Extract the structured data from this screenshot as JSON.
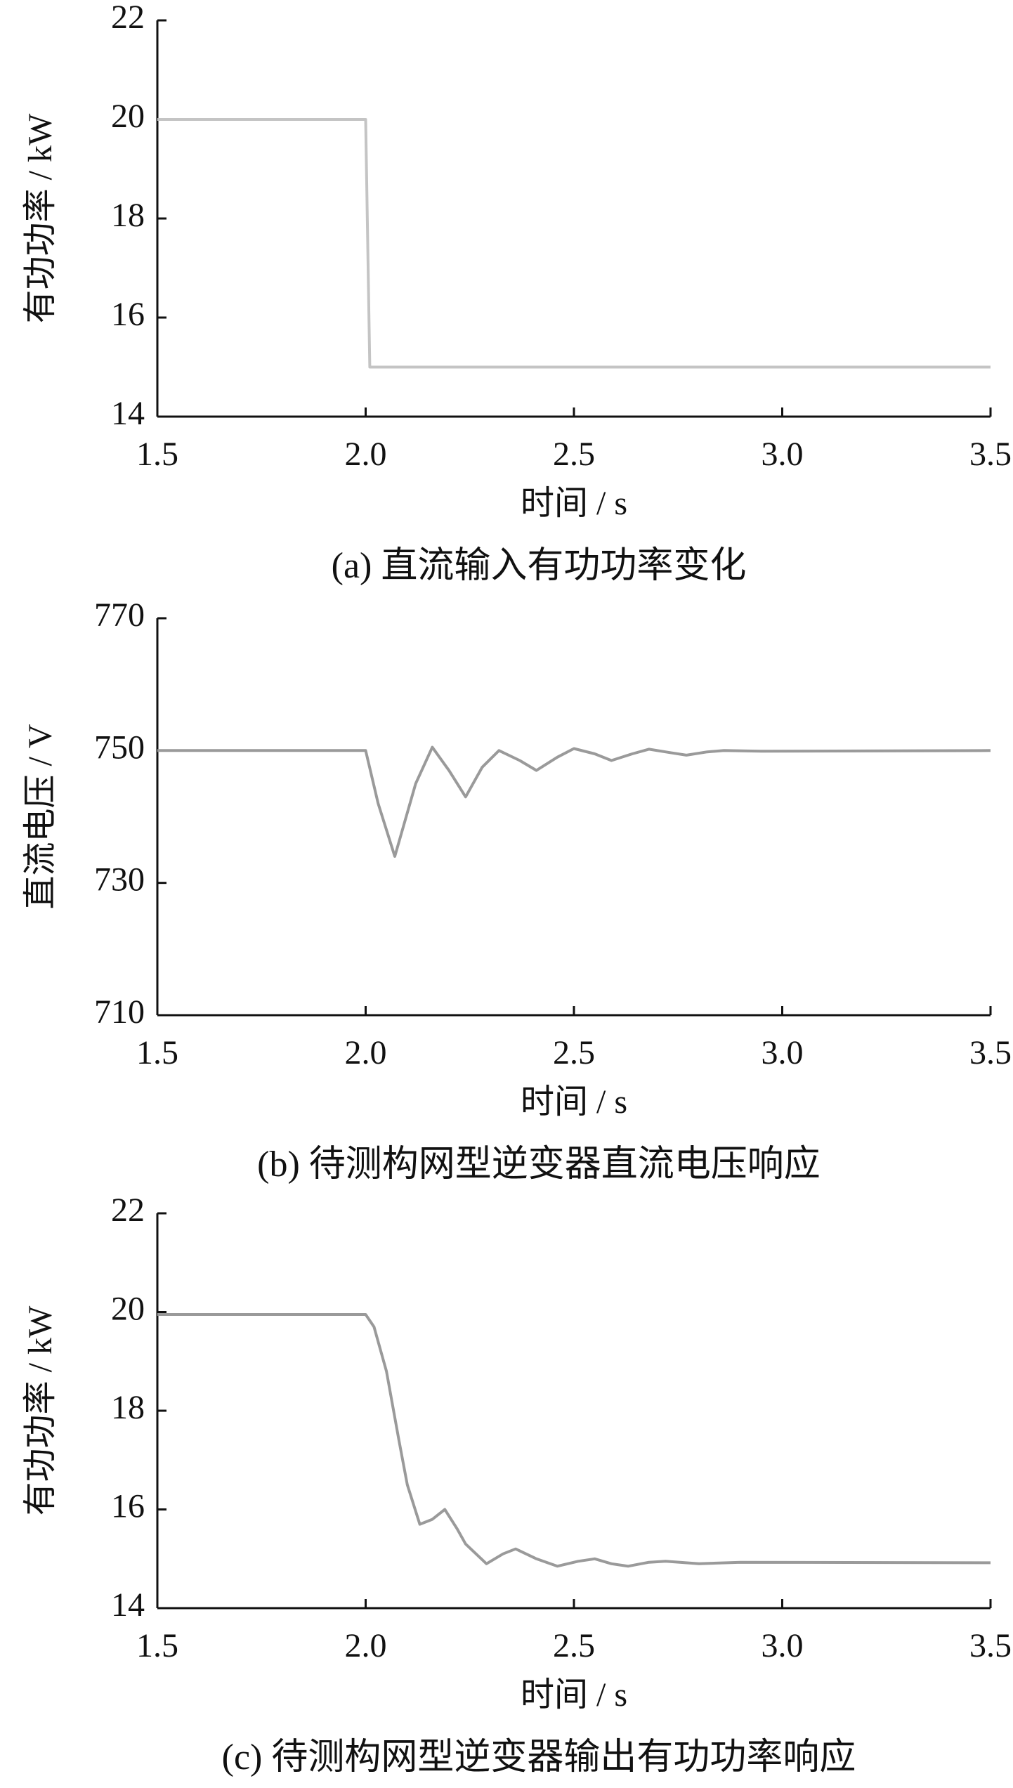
{
  "chart_data": [
    {
      "type": "line",
      "caption": "(a)  直流输入有功功率变化",
      "x_label": "时间 / s",
      "y_label": "有功功率 / kW",
      "x": [
        1.5,
        2.0,
        2.01,
        3.5
      ],
      "values": [
        20,
        20,
        15,
        15
      ],
      "color": "#c4c4c4",
      "xlim": [
        1.5,
        3.5
      ],
      "ylim": [
        14,
        22
      ],
      "xticks": [
        1.5,
        {
          "value": 2,
          "label": "2.0"
        },
        2.5,
        {
          "value": 3,
          "label": "3.0"
        },
        3.5
      ],
      "yticks": [
        14,
        16,
        18,
        20,
        22
      ]
    },
    {
      "type": "line",
      "caption": "(b)  待测构网型逆变器直流电压响应",
      "x_label": "时间 / s",
      "y_label": "直流电压 / V",
      "x": [
        1.5,
        2.0,
        2.03,
        2.07,
        2.12,
        2.16,
        2.2,
        2.24,
        2.28,
        2.32,
        2.37,
        2.41,
        2.46,
        2.5,
        2.55,
        2.59,
        2.64,
        2.68,
        2.73,
        2.77,
        2.82,
        2.86,
        2.95,
        3.5
      ],
      "values": [
        750,
        750,
        742,
        734,
        745,
        750.5,
        747,
        743,
        747.5,
        750,
        748.5,
        747,
        749,
        750.3,
        749.5,
        748.5,
        749.5,
        750.2,
        749.7,
        749.3,
        749.8,
        750,
        749.9,
        750
      ],
      "color": "#9a9a9a",
      "xlim": [
        1.5,
        3.5
      ],
      "ylim": [
        710,
        770
      ],
      "xticks": [
        1.5,
        {
          "value": 2,
          "label": "2.0"
        },
        2.5,
        {
          "value": 3,
          "label": "3.0"
        },
        3.5
      ],
      "yticks": [
        710,
        730,
        750,
        770
      ]
    },
    {
      "type": "line",
      "caption": "(c)  待测构网型逆变器输出有功功率响应",
      "x_label": "时间 / s",
      "y_label": "有功功率 / kW",
      "x": [
        1.5,
        2.0,
        2.02,
        2.05,
        2.08,
        2.1,
        2.13,
        2.16,
        2.19,
        2.22,
        2.24,
        2.29,
        2.33,
        2.36,
        2.41,
        2.46,
        2.51,
        2.55,
        2.59,
        2.63,
        2.68,
        2.72,
        2.8,
        2.9,
        3.5
      ],
      "values": [
        19.95,
        19.95,
        19.7,
        18.8,
        17.4,
        16.5,
        15.7,
        15.8,
        16.0,
        15.6,
        15.3,
        14.9,
        15.1,
        15.2,
        15.0,
        14.85,
        14.95,
        15.0,
        14.9,
        14.85,
        14.93,
        14.95,
        14.9,
        14.93,
        14.92
      ],
      "color": "#9a9a9a",
      "xlim": [
        1.5,
        3.5
      ],
      "ylim": [
        14,
        22
      ],
      "xticks": [
        1.5,
        {
          "value": 2,
          "label": "2.0"
        },
        2.5,
        {
          "value": 3,
          "label": "3.0"
        },
        3.5
      ],
      "yticks": [
        14,
        16,
        18,
        20,
        22
      ]
    }
  ]
}
